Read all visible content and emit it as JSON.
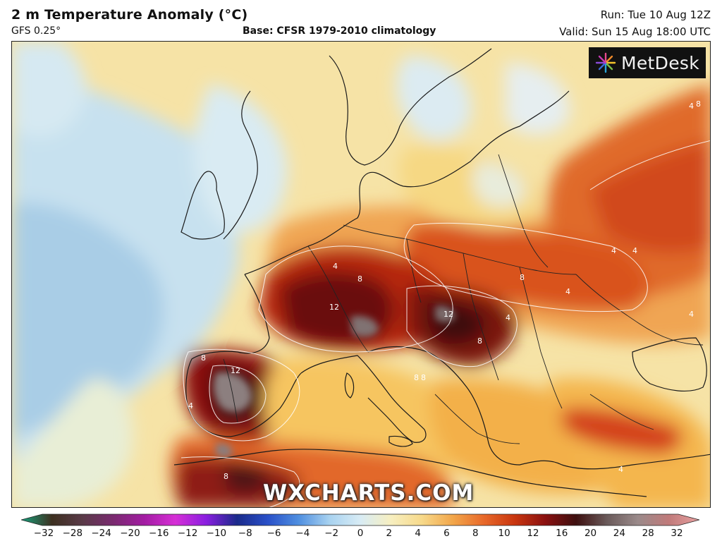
{
  "header": {
    "title": "2 m Temperature Anomaly (°C)",
    "model": "GFS 0.25°",
    "base": "Base: CFSR 1979-2010 climatology",
    "run": "Run: Tue 10 Aug 12Z",
    "valid": "Valid: Sun 15 Aug 18:00 UTC"
  },
  "logo": {
    "text": "MetDesk",
    "icon": "starburst-logo-icon"
  },
  "watermark": "WXCHARTS.COM",
  "map_labels": [
    "4",
    "8",
    "12",
    "4",
    "8",
    "12",
    "8",
    "4",
    "8",
    "12",
    "4",
    "8",
    "4",
    "8",
    "4",
    "4",
    "8",
    "4",
    "8",
    "4"
  ],
  "colorbar": {
    "ticks": [
      "−32",
      "−28",
      "−24",
      "−20",
      "−16",
      "−12",
      "−10",
      "−8",
      "−6",
      "−4",
      "−2",
      "0",
      "2",
      "4",
      "6",
      "8",
      "10",
      "12",
      "16",
      "20",
      "24",
      "28",
      "32"
    ],
    "colors": [
      "#17a07c",
      "#3d3020",
      "#5a3a48",
      "#7a2a70",
      "#a31ca3",
      "#d62fd6",
      "#8a1ee0",
      "#1a2a8a",
      "#2950c8",
      "#4f8fe0",
      "#a8d2f0",
      "#d8ecf5",
      "#f7efc0",
      "#f7d98a",
      "#f2a64a",
      "#e8692a",
      "#c9360f",
      "#8a1010",
      "#3d0f0f",
      "#6a5a5a",
      "#9a8a8a",
      "#c07a7a",
      "#e8a0a0"
    ]
  }
}
